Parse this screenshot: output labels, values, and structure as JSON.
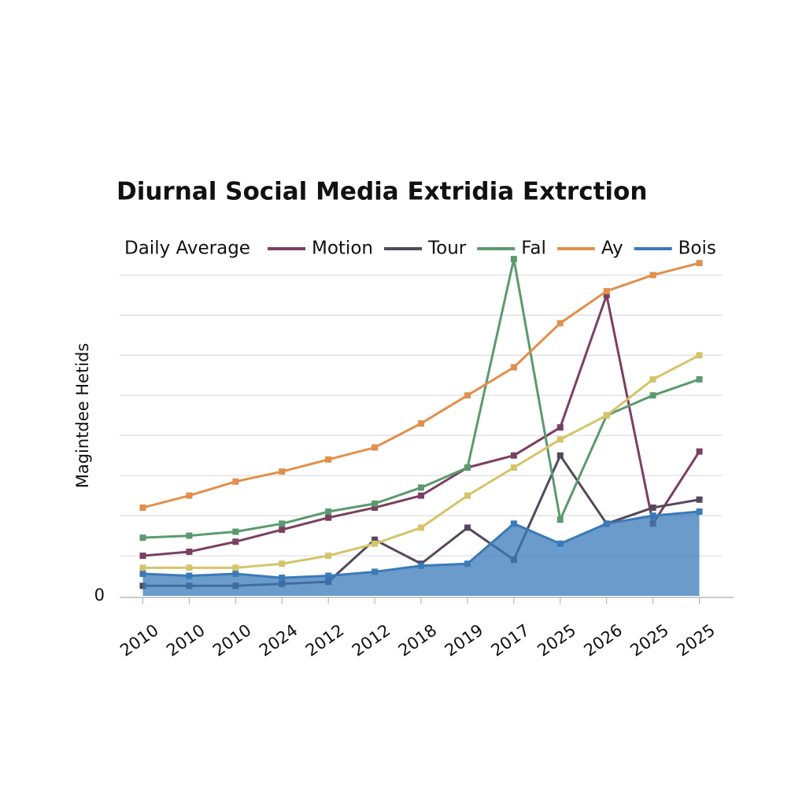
{
  "chart_data": {
    "type": "line",
    "title": "Diurnal Social Media Extridia Extrction",
    "legend_title": "Daily Average",
    "y_label": "Magintdee Hetids",
    "categories": [
      "2010",
      "2010",
      "2010",
      "2024",
      "2012",
      "2012",
      "2018",
      "2019",
      "2017",
      "2025",
      "2026",
      "2025",
      "2025"
    ],
    "ylim": [
      0,
      8.5
    ],
    "yticks": [
      0
    ],
    "grid": true,
    "grid_lines": [
      1,
      2,
      3,
      4,
      5,
      6,
      7,
      8
    ],
    "series": [
      {
        "name": "Motion",
        "color": "#7b3f62",
        "values": [
          1.0,
          1.1,
          1.35,
          1.65,
          1.95,
          2.2,
          2.5,
          3.2,
          3.5,
          4.2,
          7.5,
          1.8,
          3.6
        ]
      },
      {
        "name": "Tour",
        "color": "#55485c",
        "values": [
          0.25,
          0.25,
          0.25,
          0.3,
          0.35,
          1.4,
          0.8,
          1.7,
          0.9,
          3.5,
          1.8,
          2.2,
          2.4
        ]
      },
      {
        "name": "Fal",
        "color": "#5a9a6e",
        "values": [
          1.45,
          1.5,
          1.6,
          1.8,
          2.1,
          2.3,
          2.7,
          3.2,
          8.4,
          1.9,
          4.5,
          5.0,
          5.4
        ]
      },
      {
        "name": "Ay",
        "color": "#e0904a",
        "values": [
          2.2,
          2.5,
          2.85,
          3.1,
          3.4,
          3.7,
          4.3,
          5.0,
          5.7,
          6.8,
          7.6,
          8.0,
          8.3
        ]
      },
      {
        "name": "Bois",
        "color": "#3a7ab8",
        "fill": true,
        "values": [
          0.55,
          0.5,
          0.55,
          0.45,
          0.5,
          0.6,
          0.75,
          0.8,
          1.8,
          1.3,
          1.8,
          2.0,
          2.1
        ]
      },
      {
        "color": "#d4c46a",
        "values": [
          0.7,
          0.7,
          0.7,
          0.8,
          1.0,
          1.3,
          1.7,
          2.5,
          3.2,
          3.9,
          4.5,
          5.4,
          6.0
        ]
      }
    ]
  }
}
